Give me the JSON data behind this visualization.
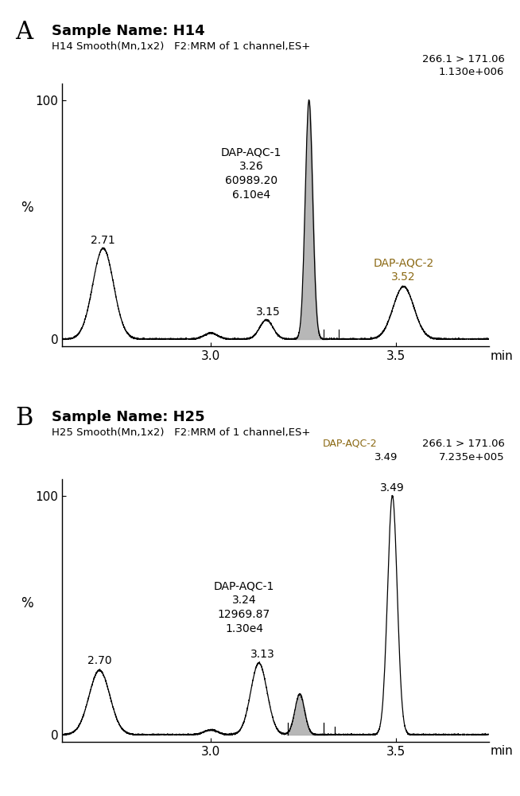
{
  "panel_A": {
    "title_bold": "Sample Name: H14",
    "subtitle": "H14 Smooth(Mn,1x2)   F2:MRM of 1 channel,ES+",
    "info_line1": "266.1 > 171.06",
    "info_line2": "1.130e+006",
    "dap_aqc1_text": "DAP-AQC-1\n3.26\n60989.20\n6.10e4",
    "peak1_label": "2.71",
    "peak3_label": "3.15",
    "dap_aqc2_label": "DAP-AQC-2",
    "dap_aqc2_rt": "3.52",
    "dap_aqc2_color": "#8B6914",
    "xlim": [
      2.6,
      3.75
    ],
    "ylim": [
      -3,
      107
    ],
    "xticks": [
      3.0,
      3.5
    ],
    "yticks": [
      0,
      100
    ]
  },
  "panel_B": {
    "title_bold": "Sample Name: H25",
    "subtitle": "H25 Smooth(Mn,1x2)   F2:MRM of 1 channel,ES+",
    "info_line1": "266.1 > 171.06",
    "info_line2": "7.235e+005",
    "dap_aqc1_text": "DAP-AQC-1\n3.24\n12969.87\n1.30e4",
    "peak1_label": "2.70",
    "peak3_label": "3.13",
    "dap_aqc2_label": "DAP-AQC-2",
    "dap_aqc2_rt": "3.49",
    "dap_aqc2_color": "#8B6914",
    "xlim": [
      2.6,
      3.75
    ],
    "ylim": [
      -3,
      107
    ],
    "xticks": [
      3.0,
      3.5
    ],
    "yticks": [
      0,
      100
    ]
  },
  "background_color": "#ffffff",
  "line_color": "#000000",
  "fill_color": "#b0b0b0",
  "label_A": "A",
  "label_B": "B",
  "xlabel": "min",
  "ylabel": "%"
}
